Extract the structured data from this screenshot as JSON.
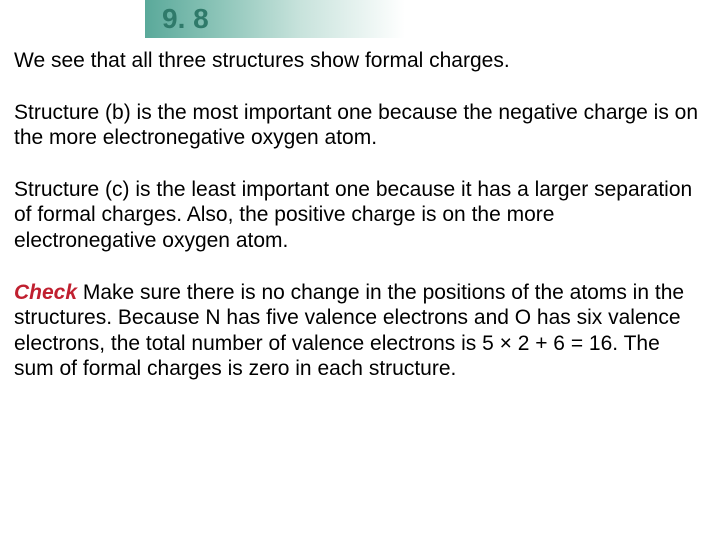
{
  "header": {
    "number": "9. 8",
    "band_gradient_start": "#5aa99a",
    "band_gradient_end": "#ffffff",
    "number_color": "#2f7a6a"
  },
  "paragraphs": {
    "p1": "We see that all three structures show formal charges.",
    "p2": "Structure (b) is the most important one because the negative charge is on the more electronegative oxygen atom.",
    "p3": "Structure (c) is the least important one because it has a larger separation of formal charges.  Also, the positive charge is on the more  electronegative oxygen atom.",
    "check_label": "Check",
    "p4": "  Make sure there is no change in the positions of the atoms in the structures. Because N has five valence electrons and O has six valence electrons, the total number of valence electrons is 5 × 2 + 6 = 16.  The sum of formal charges is zero in each structure."
  },
  "styles": {
    "body_font_size": 21,
    "body_color": "#000000",
    "check_color": "#c02030",
    "background": "#ffffff"
  }
}
